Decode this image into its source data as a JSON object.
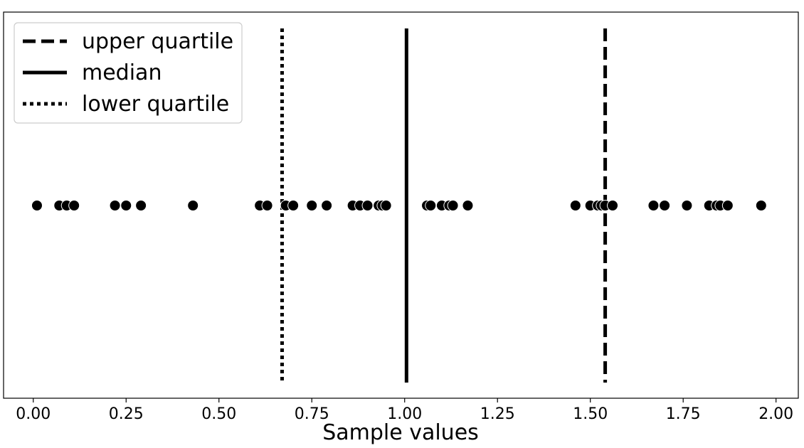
{
  "chart_data": {
    "type": "scatter",
    "xlabel": "Sample values",
    "ylabel": "",
    "xlim": [
      -0.08,
      2.06
    ],
    "xticks": [
      0.0,
      0.25,
      0.5,
      0.75,
      1.0,
      1.25,
      1.5,
      1.75,
      2.0
    ],
    "xtick_labels": [
      "0.00",
      "0.25",
      "0.50",
      "0.75",
      "1.00",
      "1.25",
      "1.50",
      "1.75",
      "2.00"
    ],
    "grid": false,
    "legend_position": "top-left",
    "points": {
      "y": 0,
      "x": [
        0.01,
        0.07,
        0.09,
        0.11,
        0.22,
        0.25,
        0.29,
        0.43,
        0.61,
        0.63,
        0.68,
        0.7,
        0.75,
        0.79,
        0.86,
        0.88,
        0.9,
        0.93,
        0.94,
        0.95,
        1.06,
        1.07,
        1.1,
        1.12,
        1.13,
        1.17,
        1.46,
        1.5,
        1.52,
        1.53,
        1.54,
        1.56,
        1.67,
        1.7,
        1.76,
        1.82,
        1.84,
        1.85,
        1.87,
        1.96
      ]
    },
    "reference_lines": [
      {
        "name": "upper quartile",
        "x": 1.54,
        "style": "dashed"
      },
      {
        "name": "median",
        "x": 1.005,
        "style": "solid"
      },
      {
        "name": "lower quartile",
        "x": 0.67,
        "style": "dotted"
      }
    ]
  },
  "legend": {
    "items": [
      "upper quartile",
      "median",
      "lower quartile"
    ]
  },
  "colors": {
    "ink": "#000000",
    "marker_edge": "#ffffff",
    "background": "#ffffff"
  }
}
